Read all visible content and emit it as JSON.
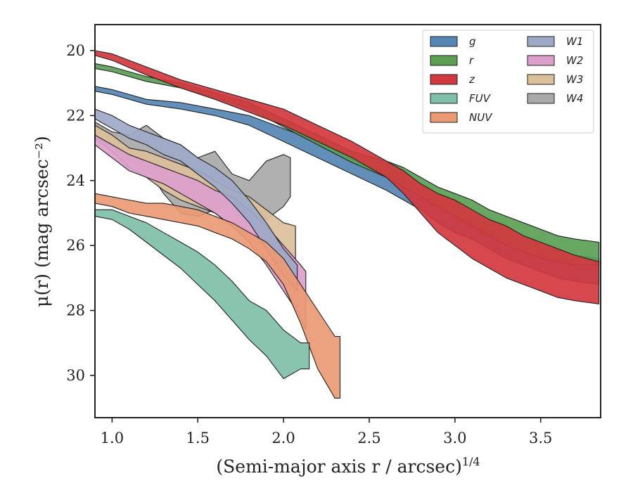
{
  "chart_data": {
    "type": "area",
    "xlabel": "(Semi-major axis r / arcsec)",
    "xlabel_sup": "1/4",
    "ylabel": "μ(r) (mag arcsec⁻²)",
    "xlim": [
      0.9,
      3.85
    ],
    "ylim": [
      31.3,
      19.2
    ],
    "y_inverted": true,
    "xticks": [
      1.0,
      1.5,
      2.0,
      2.5,
      3.0,
      3.5
    ],
    "xtick_labels": [
      "1.0",
      "1.5",
      "2.0",
      "2.5",
      "3.0",
      "3.5"
    ],
    "yticks": [
      20,
      22,
      24,
      26,
      28,
      30
    ],
    "ytick_labels": [
      "20",
      "22",
      "24",
      "26",
      "28",
      "30"
    ],
    "grid": false,
    "legend_position": "top-right",
    "legend_columns": 2,
    "series": [
      {
        "name": "W4",
        "color": "#a9a9a9",
        "x": [
          0.9,
          1.0,
          1.1,
          1.2,
          1.3,
          1.4,
          1.5,
          1.6,
          1.7,
          1.8,
          1.9,
          2.0,
          2.04
        ],
        "y_top": [
          22.2,
          22.5,
          22.6,
          22.3,
          22.7,
          22.9,
          23.3,
          23.1,
          23.8,
          24.0,
          23.4,
          23.2,
          23.3
        ],
        "y_bot": [
          22.6,
          23.1,
          23.4,
          23.6,
          24.4,
          25.0,
          25.1,
          24.9,
          24.7,
          24.9,
          25.2,
          24.8,
          24.5
        ]
      },
      {
        "name": "W3",
        "color": "#dbbf9a",
        "x": [
          0.9,
          1.0,
          1.1,
          1.2,
          1.3,
          1.4,
          1.5,
          1.6,
          1.7,
          1.8,
          1.9,
          2.0,
          2.07
        ],
        "y_top": [
          22.3,
          22.6,
          23.0,
          23.1,
          23.3,
          23.5,
          23.7,
          24.0,
          24.3,
          24.5,
          24.9,
          25.3,
          25.4
        ],
        "y_bot": [
          22.7,
          23.1,
          23.6,
          23.9,
          24.3,
          24.6,
          24.8,
          25.0,
          25.4,
          25.7,
          26.0,
          26.4,
          26.5
        ]
      },
      {
        "name": "W2",
        "color": "#dc9fcc",
        "x": [
          0.9,
          1.0,
          1.1,
          1.2,
          1.3,
          1.4,
          1.5,
          1.6,
          1.7,
          1.8,
          1.9,
          2.0,
          2.1,
          2.13
        ],
        "y_top": [
          22.6,
          22.9,
          23.2,
          23.4,
          23.6,
          23.8,
          24.0,
          24.3,
          24.5,
          24.9,
          25.4,
          26.0,
          26.6,
          26.8
        ],
        "y_bot": [
          22.9,
          23.3,
          23.7,
          23.9,
          24.1,
          24.4,
          24.7,
          25.0,
          25.4,
          25.9,
          26.6,
          27.4,
          28.2,
          28.6
        ]
      },
      {
        "name": "W1",
        "color": "#9ea8c8",
        "x": [
          0.9,
          1.0,
          1.1,
          1.2,
          1.3,
          1.4,
          1.5,
          1.6,
          1.7,
          1.8,
          1.9,
          2.0,
          2.08
        ],
        "y_top": [
          21.8,
          22.0,
          22.3,
          22.5,
          22.7,
          22.9,
          23.3,
          23.6,
          24.0,
          24.6,
          25.3,
          26.1,
          26.6
        ],
        "y_bot": [
          22.1,
          22.4,
          22.7,
          22.9,
          23.2,
          23.4,
          23.8,
          24.2,
          24.7,
          25.3,
          26.1,
          26.9,
          27.4
        ]
      },
      {
        "name": "NUV",
        "color": "#eb9a74",
        "x": [
          0.9,
          1.0,
          1.1,
          1.2,
          1.3,
          1.4,
          1.5,
          1.6,
          1.7,
          1.8,
          1.9,
          2.0,
          2.1,
          2.2,
          2.3,
          2.33
        ],
        "y_top": [
          24.4,
          24.5,
          24.6,
          24.7,
          24.7,
          24.8,
          24.9,
          25.1,
          25.3,
          25.6,
          25.9,
          26.4,
          27.2,
          28.0,
          28.8,
          28.8
        ],
        "y_bot": [
          24.7,
          24.8,
          25.0,
          25.1,
          25.2,
          25.3,
          25.4,
          25.6,
          25.8,
          26.1,
          26.5,
          27.2,
          28.4,
          29.8,
          30.7,
          30.7
        ]
      },
      {
        "name": "FUV",
        "color": "#7fbfa8",
        "x": [
          0.9,
          1.0,
          1.1,
          1.2,
          1.3,
          1.4,
          1.5,
          1.6,
          1.7,
          1.8,
          1.9,
          2.0,
          2.1,
          2.15
        ],
        "y_top": [
          24.9,
          24.9,
          25.1,
          25.3,
          25.6,
          25.9,
          26.2,
          26.6,
          27.1,
          27.7,
          28.0,
          28.6,
          29.0,
          29.0
        ],
        "y_bot": [
          25.1,
          25.2,
          25.5,
          25.9,
          26.3,
          26.7,
          27.2,
          27.7,
          28.3,
          28.9,
          29.4,
          30.1,
          29.8,
          29.8
        ]
      },
      {
        "name": "g",
        "color": "#5485b4",
        "x": [
          0.9,
          1.0,
          1.2,
          1.4,
          1.6,
          1.8,
          2.0,
          2.2,
          2.4,
          2.6,
          2.7,
          2.8,
          2.9,
          3.0,
          3.1,
          3.2,
          3.3,
          3.4,
          3.5,
          3.6,
          3.7,
          3.84
        ],
        "y_top": [
          21.1,
          21.2,
          21.5,
          21.6,
          21.8,
          22.0,
          22.4,
          22.8,
          23.3,
          23.7,
          23.9,
          24.2,
          24.6,
          24.8,
          25.0,
          25.3,
          25.6,
          25.8,
          26.0,
          26.2,
          26.3,
          26.4
        ],
        "y_bot": [
          21.25,
          21.35,
          21.65,
          21.8,
          22.0,
          22.3,
          22.8,
          23.3,
          23.8,
          24.3,
          24.6,
          24.9,
          25.3,
          25.6,
          25.8,
          26.1,
          26.4,
          26.6,
          26.8,
          27.0,
          27.1,
          27.2
        ]
      },
      {
        "name": "r",
        "color": "#5a9f54",
        "x": [
          0.9,
          1.0,
          1.2,
          1.4,
          1.6,
          1.8,
          2.0,
          2.2,
          2.4,
          2.6,
          2.7,
          2.8,
          2.9,
          3.0,
          3.1,
          3.2,
          3.3,
          3.4,
          3.5,
          3.6,
          3.7,
          3.84
        ],
        "y_top": [
          20.4,
          20.5,
          20.8,
          21.0,
          21.3,
          21.6,
          22.1,
          22.6,
          23.1,
          23.4,
          23.6,
          23.9,
          24.2,
          24.4,
          24.6,
          24.9,
          25.1,
          25.3,
          25.5,
          25.7,
          25.8,
          25.9
        ],
        "y_bot": [
          20.55,
          20.65,
          20.95,
          21.15,
          21.45,
          21.8,
          22.35,
          22.9,
          23.45,
          23.9,
          24.2,
          24.5,
          24.8,
          25.1,
          25.4,
          25.7,
          26.0,
          26.2,
          26.4,
          26.5,
          26.6,
          26.6
        ]
      },
      {
        "name": "z",
        "color": "#d2383f",
        "x": [
          0.9,
          1.0,
          1.2,
          1.4,
          1.6,
          1.8,
          2.0,
          2.2,
          2.4,
          2.6,
          2.7,
          2.8,
          2.9,
          3.0,
          3.1,
          3.2,
          3.3,
          3.4,
          3.5,
          3.6,
          3.7,
          3.84
        ],
        "y_top": [
          20.0,
          20.1,
          20.5,
          20.9,
          21.2,
          21.5,
          21.8,
          22.3,
          22.8,
          23.4,
          23.7,
          24.1,
          24.4,
          24.6,
          24.9,
          25.2,
          25.4,
          25.7,
          25.9,
          26.1,
          26.3,
          26.5
        ],
        "y_bot": [
          20.15,
          20.3,
          20.75,
          21.15,
          21.5,
          21.9,
          22.3,
          22.8,
          23.3,
          23.9,
          24.4,
          25.0,
          25.6,
          26.0,
          26.4,
          26.7,
          27.0,
          27.2,
          27.4,
          27.6,
          27.7,
          27.8
        ]
      }
    ],
    "legend_entries": [
      "g",
      "r",
      "z",
      "FUV",
      "NUV",
      "W1",
      "W2",
      "W3",
      "W4"
    ]
  }
}
